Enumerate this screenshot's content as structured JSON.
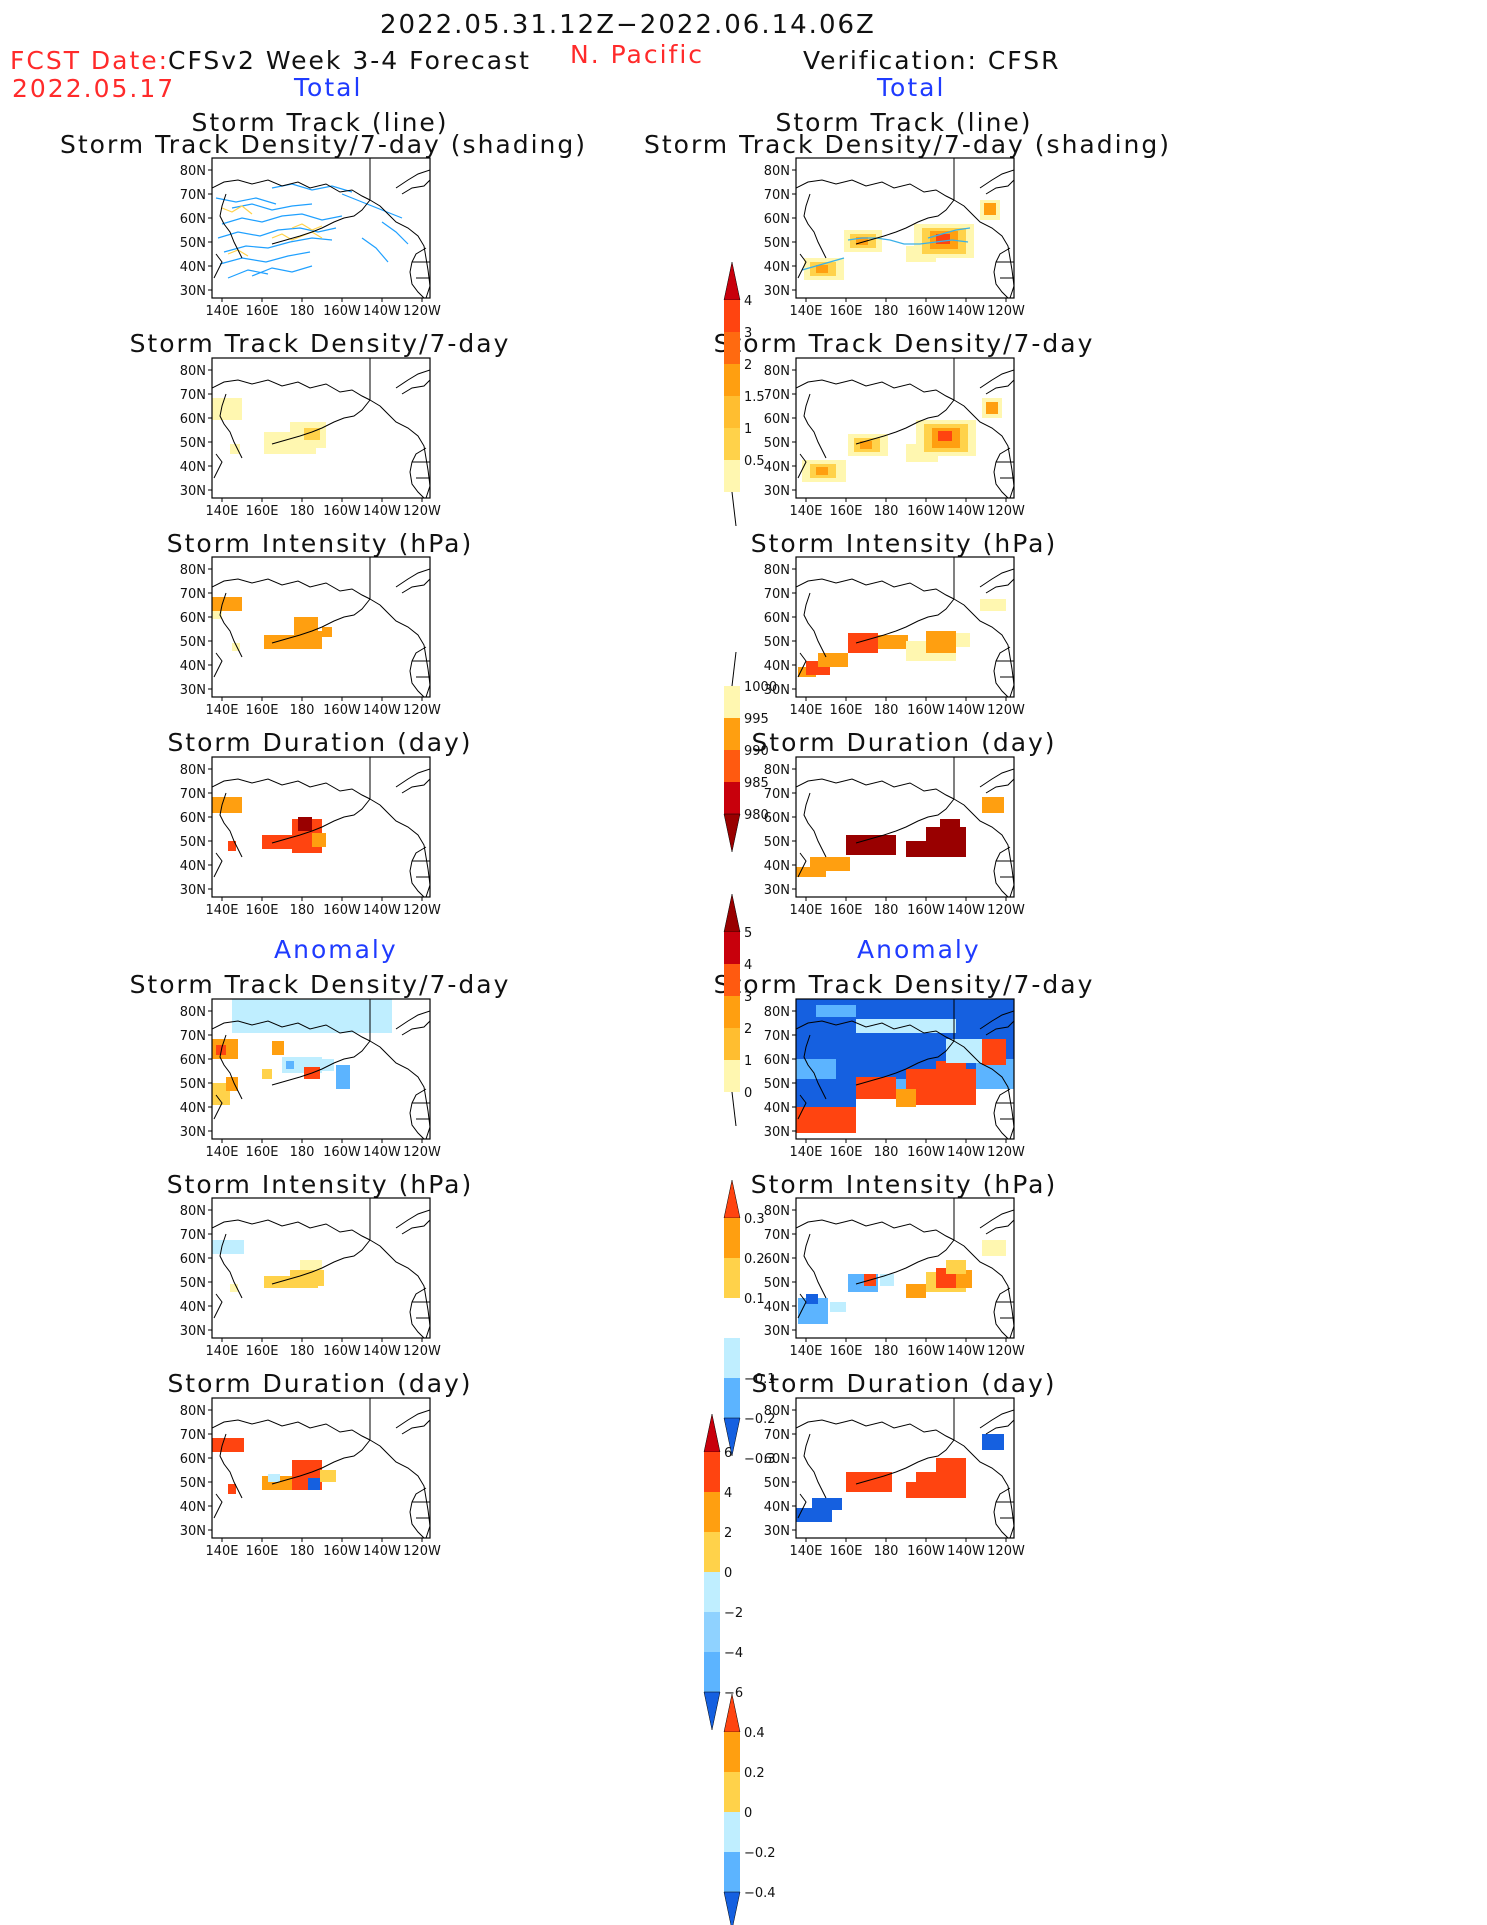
{
  "header": {
    "date_range": "2022.05.31.12Z−2022.06.14.06Z",
    "region": "N. Pacific",
    "fcst_label": "FCST Date:",
    "fcst_date": "2022.05.17",
    "left_title": "CFSv2 Week 3-4 Forecast",
    "right_title": "Verification: CFSR",
    "total_label": "Total",
    "anomaly_label": "Anomaly"
  },
  "panel_titles": {
    "track_line": "Storm Track (line)",
    "track_shading": "Storm Track Density/7-day (shading)",
    "density": "Storm Track Density/7-day",
    "intensity": "Storm Intensity (hPa)",
    "duration": "Storm Duration (day)"
  },
  "axes": {
    "lat_labels": [
      "80N",
      "70N",
      "60N",
      "50N",
      "40N",
      "30N"
    ],
    "lon_labels": [
      "140E",
      "160E",
      "180",
      "160W",
      "140W",
      "120W"
    ]
  },
  "colorbars": {
    "density_total": [
      "4",
      "3",
      "2",
      "1.5",
      "1",
      "0.5"
    ],
    "intensity_total": [
      "1000",
      "995",
      "990",
      "985",
      "980"
    ],
    "duration_total": [
      "5",
      "4",
      "3",
      "2",
      "1",
      "0"
    ],
    "density_anom": [
      "0.3",
      "0.2",
      "0.1",
      "−0.1",
      "−0.2",
      "−0.3"
    ],
    "intensity_anom": [
      "6",
      "4",
      "2",
      "0",
      "−2",
      "−4",
      "−6"
    ],
    "duration_anom": [
      "0.4",
      "0.2",
      "0",
      "−0.2",
      "−0.4"
    ]
  },
  "colors": {
    "warm_light": "#fff7b0",
    "warm_yellow": "#ffd24a",
    "warm_orange": "#ff9f10",
    "warm_red": "#ff4410",
    "warm_dark": "#c8000c",
    "warm_darkest": "#990000",
    "cool_light": "#bfeeff",
    "cool_mid": "#5cb4ff",
    "cool_dark": "#1560e0",
    "track_line": "#1fa0ff",
    "track_verif": "#3ab0e8"
  }
}
